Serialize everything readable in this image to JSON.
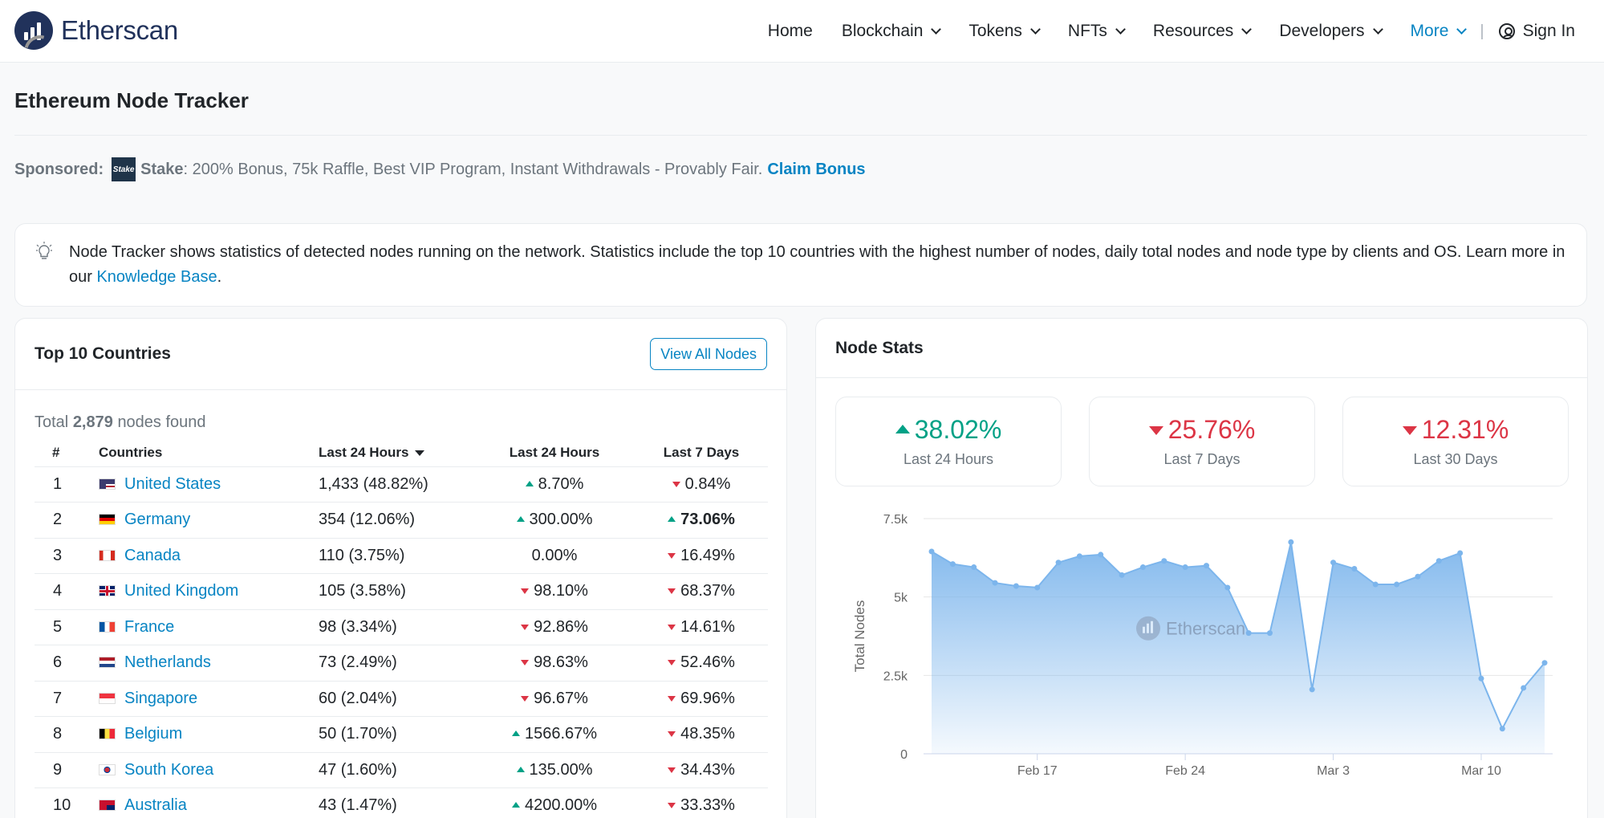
{
  "header": {
    "logo_text": "Etherscan",
    "nav": [
      {
        "label": "Home",
        "dropdown": false
      },
      {
        "label": "Blockchain",
        "dropdown": true
      },
      {
        "label": "Tokens",
        "dropdown": true
      },
      {
        "label": "NFTs",
        "dropdown": true
      },
      {
        "label": "Resources",
        "dropdown": true
      },
      {
        "label": "Developers",
        "dropdown": true
      },
      {
        "label": "More",
        "dropdown": true,
        "active": true
      }
    ],
    "separator": "|",
    "sign_in": "Sign In"
  },
  "page_title": "Ethereum Node Tracker",
  "sponsor": {
    "label": "Sponsored:",
    "logo_text": "Stake",
    "name": "Stake",
    "text": ": 200% Bonus, 75k Raffle, Best VIP Program, Instant Withdrawals - Provably Fair.",
    "link": "Claim Bonus"
  },
  "info": {
    "text": "Node Tracker shows statistics of detected nodes running on the network. Statistics include the top 10 countries with the highest number of nodes, daily total nodes and node type by clients and OS. Learn more in our ",
    "link": "Knowledge Base",
    "end": "."
  },
  "countries_card": {
    "title": "Top 10 Countries",
    "button": "View All Nodes",
    "total_prefix": "Total",
    "total_count": "2,879",
    "total_suffix": "nodes found",
    "headers": [
      "#",
      "Countries",
      "Last 24 Hours",
      "Last 24 Hours",
      "Last 7 Days"
    ],
    "rows": [
      {
        "rank": "1",
        "country": "United States",
        "nodes": "1,433 (48.82%)",
        "d24": "8.70%",
        "d24_dir": "up",
        "d7": "0.84%",
        "d7_dir": "down",
        "flag": "us"
      },
      {
        "rank": "2",
        "country": "Germany",
        "nodes": "354 (12.06%)",
        "d24": "300.00%",
        "d24_dir": "up",
        "d7": "73.06%",
        "d7_dir": "up",
        "d7_bold": true,
        "flag": "de"
      },
      {
        "rank": "3",
        "country": "Canada",
        "nodes": "110 (3.75%)",
        "d24": "0.00%",
        "d24_dir": "none",
        "d7": "16.49%",
        "d7_dir": "down",
        "flag": "ca"
      },
      {
        "rank": "4",
        "country": "United Kingdom",
        "nodes": "105 (3.58%)",
        "d24": "98.10%",
        "d24_dir": "down",
        "d7": "68.37%",
        "d7_dir": "down",
        "flag": "gb"
      },
      {
        "rank": "5",
        "country": "France",
        "nodes": "98 (3.34%)",
        "d24": "92.86%",
        "d24_dir": "down",
        "d7": "14.61%",
        "d7_dir": "down",
        "flag": "fr"
      },
      {
        "rank": "6",
        "country": "Netherlands",
        "nodes": "73 (2.49%)",
        "d24": "98.63%",
        "d24_dir": "down",
        "d7": "52.46%",
        "d7_dir": "down",
        "flag": "nl"
      },
      {
        "rank": "7",
        "country": "Singapore",
        "nodes": "60 (2.04%)",
        "d24": "96.67%",
        "d24_dir": "down",
        "d7": "69.96%",
        "d7_dir": "down",
        "flag": "sg"
      },
      {
        "rank": "8",
        "country": "Belgium",
        "nodes": "50 (1.70%)",
        "d24": "1566.67%",
        "d24_dir": "up",
        "d7": "48.35%",
        "d7_dir": "down",
        "flag": "be"
      },
      {
        "rank": "9",
        "country": "South Korea",
        "nodes": "47 (1.60%)",
        "d24": "135.00%",
        "d24_dir": "up",
        "d7": "34.43%",
        "d7_dir": "down",
        "flag": "kr"
      },
      {
        "rank": "10",
        "country": "Australia",
        "nodes": "43 (1.47%)",
        "d24": "4200.00%",
        "d24_dir": "up",
        "d7": "33.33%",
        "d7_dir": "down",
        "flag": "au"
      }
    ]
  },
  "stats_card": {
    "title": "Node Stats",
    "stats": [
      {
        "value": "38.02%",
        "dir": "up",
        "label": "Last 24 Hours"
      },
      {
        "value": "25.76%",
        "dir": "down",
        "label": "Last 7 Days"
      },
      {
        "value": "12.31%",
        "dir": "down",
        "label": "Last 30 Days"
      }
    ]
  },
  "colors": {
    "up": "#00a186",
    "down": "#dc3545",
    "link": "#0784c3",
    "area": "#7cb5ec"
  },
  "chart_data": {
    "type": "area",
    "title": "",
    "xlabel": "",
    "ylabel": "Total Nodes",
    "watermark": "Etherscan",
    "ylim": [
      0,
      7500
    ],
    "y_ticks": [
      "0",
      "2.5k",
      "5k",
      "7.5k"
    ],
    "y_tick_values": [
      0,
      2500,
      5000,
      7500
    ],
    "x_ticks": [
      "Feb 17",
      "Feb 24",
      "Mar 3",
      "Mar 10"
    ],
    "x_tick_index": [
      5,
      12,
      19,
      26
    ],
    "grid": true,
    "legend": "none",
    "series": [
      {
        "values": [
          6450,
          6050,
          5950,
          5450,
          5350,
          5300,
          6100,
          6300,
          6350,
          5700,
          5950,
          6150,
          5950,
          6000,
          5300,
          3850,
          3850,
          6750,
          2050,
          6100,
          5900,
          5400,
          5400,
          5650,
          6150,
          6400,
          2400,
          800,
          2100,
          2900
        ]
      }
    ]
  }
}
